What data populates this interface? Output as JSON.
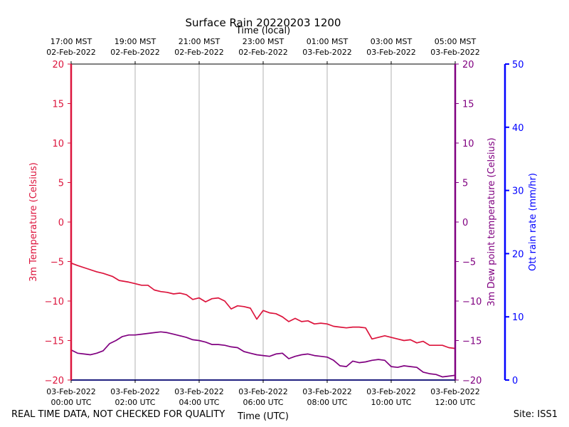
{
  "chart_data": {
    "type": "line",
    "title": "Surface Rain 20220203 1200",
    "top_xlabel": "Time (local)",
    "xlabel": "Time (UTC)",
    "x_range_hours_utc": [
      0,
      12
    ],
    "bottom_ticks": [
      {
        "hour": 0,
        "line1": "03-Feb-2022",
        "line2": "00:00 UTC"
      },
      {
        "hour": 2,
        "line1": "03-Feb-2022",
        "line2": "02:00 UTC"
      },
      {
        "hour": 4,
        "line1": "03-Feb-2022",
        "line2": "04:00 UTC"
      },
      {
        "hour": 6,
        "line1": "03-Feb-2022",
        "line2": "06:00 UTC"
      },
      {
        "hour": 8,
        "line1": "03-Feb-2022",
        "line2": "08:00 UTC"
      },
      {
        "hour": 10,
        "line1": "03-Feb-2022",
        "line2": "10:00 UTC"
      },
      {
        "hour": 12,
        "line1": "03-Feb-2022",
        "line2": "12:00 UTC"
      }
    ],
    "top_ticks": [
      {
        "hour": 0,
        "line1": "17:00 MST",
        "line2": "02-Feb-2022"
      },
      {
        "hour": 2,
        "line1": "19:00 MST",
        "line2": "02-Feb-2022"
      },
      {
        "hour": 4,
        "line1": "21:00 MST",
        "line2": "02-Feb-2022"
      },
      {
        "hour": 6,
        "line1": "23:00 MST",
        "line2": "02-Feb-2022"
      },
      {
        "hour": 8,
        "line1": "01:00 MST",
        "line2": "03-Feb-2022"
      },
      {
        "hour": 10,
        "line1": "03:00 MST",
        "line2": "03-Feb-2022"
      },
      {
        "hour": 12,
        "line1": "05:00 MST",
        "line2": "03-Feb-2022"
      }
    ],
    "left_axis": {
      "label": "3m Temperature (Celsius)",
      "color": "#dc143c",
      "ylim": [
        -20,
        20
      ],
      "ticks": [
        -20,
        -15,
        -10,
        -5,
        0,
        5,
        10,
        15,
        20
      ]
    },
    "right_axis": {
      "label": "3m Dew point temperature (Celsius)",
      "color": "#800080",
      "ylim": [
        -20,
        20
      ],
      "ticks": [
        -20,
        -15,
        -10,
        -5,
        0,
        5,
        10,
        15,
        20
      ]
    },
    "rain_axis": {
      "label": "Ott rain rate (mm/hr)",
      "color": "#0000ff",
      "ylim": [
        0,
        50
      ],
      "ticks": [
        0,
        10,
        20,
        30,
        40,
        50
      ]
    },
    "grid": "vertical",
    "series": [
      {
        "name": "3m Temperature",
        "axis": "left",
        "color": "#dc143c",
        "x": [
          0,
          0.2,
          0.5,
          0.8,
          1.0,
          1.3,
          1.5,
          1.8,
          2.0,
          2.2,
          2.4,
          2.6,
          2.8,
          3.0,
          3.2,
          3.4,
          3.6,
          3.8,
          4.0,
          4.2,
          4.4,
          4.6,
          4.8,
          5.0,
          5.2,
          5.4,
          5.6,
          5.8,
          6.0,
          6.2,
          6.4,
          6.6,
          6.8,
          7.0,
          7.2,
          7.4,
          7.6,
          7.8,
          8.0,
          8.2,
          8.4,
          8.6,
          8.8,
          9.0,
          9.2,
          9.4,
          9.6,
          9.8,
          10.0,
          10.2,
          10.4,
          10.6,
          10.8,
          11.0,
          11.2,
          11.4,
          11.6,
          11.8,
          12.0
        ],
        "values": [
          -5.2,
          -5.5,
          -5.9,
          -6.3,
          -6.5,
          -6.9,
          -7.4,
          -7.6,
          -7.8,
          -8.0,
          -8.0,
          -8.6,
          -8.8,
          -8.9,
          -9.1,
          -9.0,
          -9.2,
          -9.8,
          -9.6,
          -10.1,
          -9.7,
          -9.6,
          -10.0,
          -11.0,
          -10.6,
          -10.7,
          -10.9,
          -12.3,
          -11.2,
          -11.5,
          -11.6,
          -12.0,
          -12.6,
          -12.2,
          -12.6,
          -12.5,
          -12.9,
          -12.8,
          -12.9,
          -13.2,
          -13.3,
          -13.4,
          -13.3,
          -13.3,
          -13.4,
          -14.8,
          -14.6,
          -14.4,
          -14.6,
          -14.8,
          -15.0,
          -14.9,
          -15.3,
          -15.1,
          -15.6,
          -15.6,
          -15.6,
          -15.9,
          -16.0
        ]
      },
      {
        "name": "3m Dew point temperature",
        "axis": "right",
        "color": "#800080",
        "x": [
          0,
          0.2,
          0.4,
          0.6,
          0.8,
          1.0,
          1.2,
          1.4,
          1.6,
          1.8,
          2.0,
          2.2,
          2.4,
          2.6,
          2.8,
          3.0,
          3.2,
          3.4,
          3.6,
          3.8,
          4.0,
          4.2,
          4.4,
          4.6,
          4.8,
          5.0,
          5.2,
          5.4,
          5.6,
          5.8,
          6.0,
          6.2,
          6.4,
          6.6,
          6.8,
          7.0,
          7.2,
          7.4,
          7.6,
          7.8,
          8.0,
          8.2,
          8.4,
          8.6,
          8.8,
          9.0,
          9.2,
          9.4,
          9.6,
          9.8,
          10.0,
          10.2,
          10.4,
          10.6,
          10.8,
          11.0,
          11.2,
          11.4,
          11.6,
          11.8,
          12.0
        ],
        "values": [
          -16.2,
          -16.6,
          -16.7,
          -16.8,
          -16.6,
          -16.3,
          -15.4,
          -15.0,
          -14.5,
          -14.3,
          -14.3,
          -14.2,
          -14.1,
          -14.0,
          -13.9,
          -14.0,
          -14.2,
          -14.4,
          -14.6,
          -14.9,
          -15.0,
          -15.2,
          -15.5,
          -15.5,
          -15.6,
          -15.8,
          -15.9,
          -16.4,
          -16.6,
          -16.8,
          -16.9,
          -17.0,
          -16.7,
          -16.6,
          -17.3,
          -17.0,
          -16.8,
          -16.7,
          -16.9,
          -17.0,
          -17.1,
          -17.5,
          -18.2,
          -18.3,
          -17.6,
          -17.8,
          -17.7,
          -17.5,
          -17.4,
          -17.5,
          -18.3,
          -18.4,
          -18.2,
          -18.3,
          -18.4,
          -19.0,
          -19.2,
          -19.3,
          -19.6,
          -19.5,
          -19.4
        ]
      },
      {
        "name": "Ott rain rate",
        "axis": "rain",
        "color": "#0000ff",
        "x": [
          0,
          12
        ],
        "values": [
          0,
          0
        ]
      }
    ]
  },
  "footer": {
    "left": "REAL TIME DATA, NOT CHECKED FOR QUALITY",
    "right": "Site: ISS1"
  }
}
